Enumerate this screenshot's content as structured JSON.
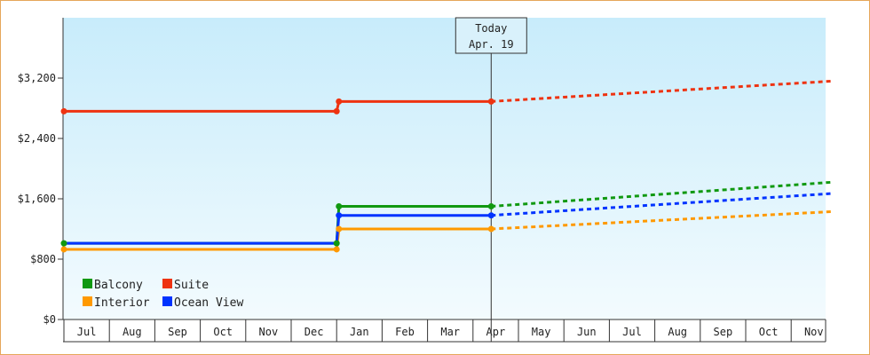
{
  "chart_data": {
    "type": "line",
    "title": "",
    "xlabel": "",
    "ylabel": "",
    "x_categories": [
      "Jul",
      "Aug",
      "Sep",
      "Oct",
      "Nov",
      "Dec",
      "Jan",
      "Feb",
      "Mar",
      "Apr",
      "May",
      "Jun",
      "Jul",
      "Aug",
      "Sep",
      "Oct",
      "Nov"
    ],
    "ylim": [
      0,
      4000
    ],
    "y_ticks": [
      0,
      800,
      1600,
      2400,
      3200
    ],
    "y_tick_labels": [
      "$0",
      "$800",
      "$1,600",
      "$2,400",
      "$3,200"
    ],
    "grid": false,
    "legend_position": "bottom-left",
    "today_marker": {
      "line1": "Today",
      "line2": "Apr. 19",
      "x": 9.4
    },
    "series": [
      {
        "name": "Balcony",
        "color": "#119911",
        "actual": [
          [
            0,
            1010
          ],
          [
            6,
            1010
          ],
          [
            6.05,
            1500
          ],
          [
            9.4,
            1500
          ]
        ],
        "projected": [
          [
            9.4,
            1500
          ],
          [
            16.9,
            1820
          ]
        ]
      },
      {
        "name": "Suite",
        "color": "#ee3311",
        "actual": [
          [
            0,
            2760
          ],
          [
            6,
            2760
          ],
          [
            6.05,
            2890
          ],
          [
            9.4,
            2890
          ]
        ],
        "projected": [
          [
            9.4,
            2890
          ],
          [
            16.9,
            3160
          ]
        ]
      },
      {
        "name": "Interior",
        "color": "#ff9900",
        "actual": [
          [
            0,
            930
          ],
          [
            6,
            930
          ],
          [
            6.05,
            1200
          ],
          [
            9.4,
            1200
          ]
        ],
        "projected": [
          [
            9.4,
            1200
          ],
          [
            16.9,
            1430
          ]
        ]
      },
      {
        "name": "Ocean View",
        "color": "#0033ff",
        "actual": [
          [
            0,
            1010
          ],
          [
            6,
            1010
          ],
          [
            6.05,
            1380
          ],
          [
            9.4,
            1380
          ]
        ],
        "projected": [
          [
            9.4,
            1380
          ],
          [
            16.9,
            1670
          ]
        ]
      }
    ],
    "markers": [
      {
        "series": "Balcony",
        "points": [
          [
            0,
            1010
          ],
          [
            6,
            1010
          ],
          [
            6.05,
            1500
          ],
          [
            9.4,
            1500
          ]
        ]
      },
      {
        "series": "Suite",
        "points": [
          [
            0,
            2760
          ],
          [
            6,
            2760
          ],
          [
            6.05,
            2890
          ],
          [
            9.4,
            2890
          ]
        ]
      },
      {
        "series": "Interior",
        "points": [
          [
            0,
            930
          ],
          [
            6,
            930
          ],
          [
            6.05,
            1200
          ],
          [
            9.4,
            1200
          ]
        ]
      },
      {
        "series": "Ocean View",
        "points": [
          [
            6.05,
            1380
          ],
          [
            9.4,
            1380
          ]
        ]
      }
    ],
    "legend": [
      {
        "name": "Balcony",
        "color": "#119911"
      },
      {
        "name": "Suite",
        "color": "#ee3311"
      },
      {
        "name": "Interior",
        "color": "#ff9900"
      },
      {
        "name": "Ocean View",
        "color": "#0033ff"
      }
    ],
    "background_gradient": [
      "#c8ecfb",
      "#f3fbfe"
    ]
  }
}
